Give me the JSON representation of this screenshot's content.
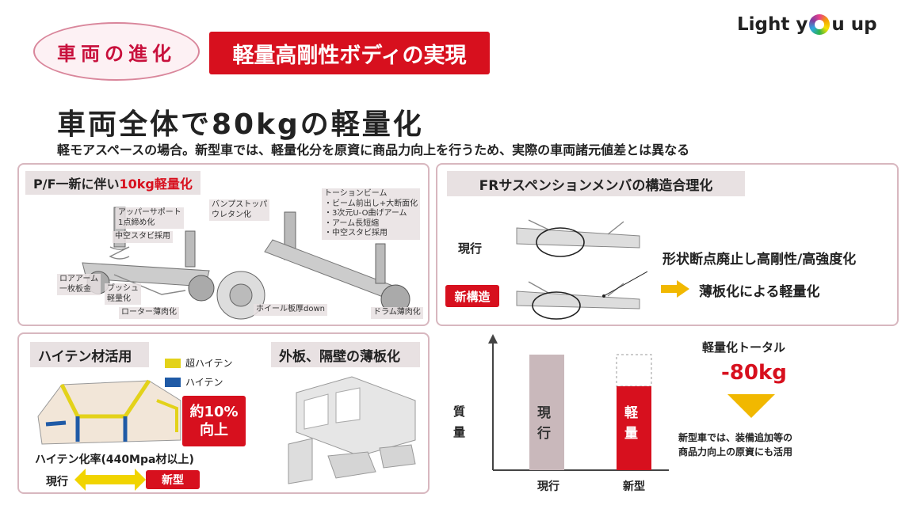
{
  "header": {
    "pill_label": "車両の進化",
    "red_tag": "軽量高剛性ボディの実現",
    "logo_pre": "Light y",
    "logo_post": "u up"
  },
  "headline": "車両全体で80kgの軽量化",
  "subline": "軽モアスペースの場合。新型車では、軽量化分を原資に商品力向上を行うため、実際の車両諸元値差とは異なる",
  "platform": {
    "title_prefix": "P/F一新に伴い",
    "title_highlight": "10kg軽量化",
    "callouts": {
      "upper_support": "アッパーサポート\n1点締め化",
      "hollow_stabi": "中空スタビ採用",
      "lower_arm": "ロアアーム\n一枚板金",
      "bush": "ブッシュ\n軽量化",
      "rotor": "ローター薄肉化",
      "bump_stop": "バンプストッパ\nウレタン化",
      "torsion_beam": "トーションビーム\n・ビーム前出し+大断面化\n・3次元U-O曲げアーム\n・アーム長短縮\n・中空スタビ採用",
      "wheel": "ホイール板厚down",
      "drum": "ドラム薄肉化"
    }
  },
  "fr_suspension": {
    "title": "FRサスペンションメンバの構造合理化",
    "current_label": "現行",
    "new_label": "新構造",
    "point1": "形状断点廃止し高剛性/高強度化",
    "point2": "薄板化による軽量化"
  },
  "hiten": {
    "title": "ハイテン材活用",
    "legend_super": "超ハイテン",
    "legend_hiten": "ハイテン",
    "badge_line1": "約10%",
    "badge_line2": "向上",
    "ratio_label": "ハイテン化率(440Mpa材以上)",
    "current": "現行",
    "new": "新型",
    "colors": {
      "super": "#e3d21a",
      "hiten": "#1f5aa6"
    }
  },
  "outer_panel": {
    "title": "外板、隔壁の薄板化"
  },
  "mass_chart": {
    "y_label": "質量",
    "bar_current_label": "現行",
    "bar_new_label": "軽量",
    "x_current": "現行",
    "x_new": "新型",
    "total_label": "軽量化トータル",
    "total_value": "-80kg",
    "note": "新型車では、装備追加等の\n商品力向上の原資にも活用"
  },
  "colors": {
    "accent_red": "#d7101e",
    "bar_current": "#c9b8bb",
    "panel_border": "#d8b7bf"
  }
}
